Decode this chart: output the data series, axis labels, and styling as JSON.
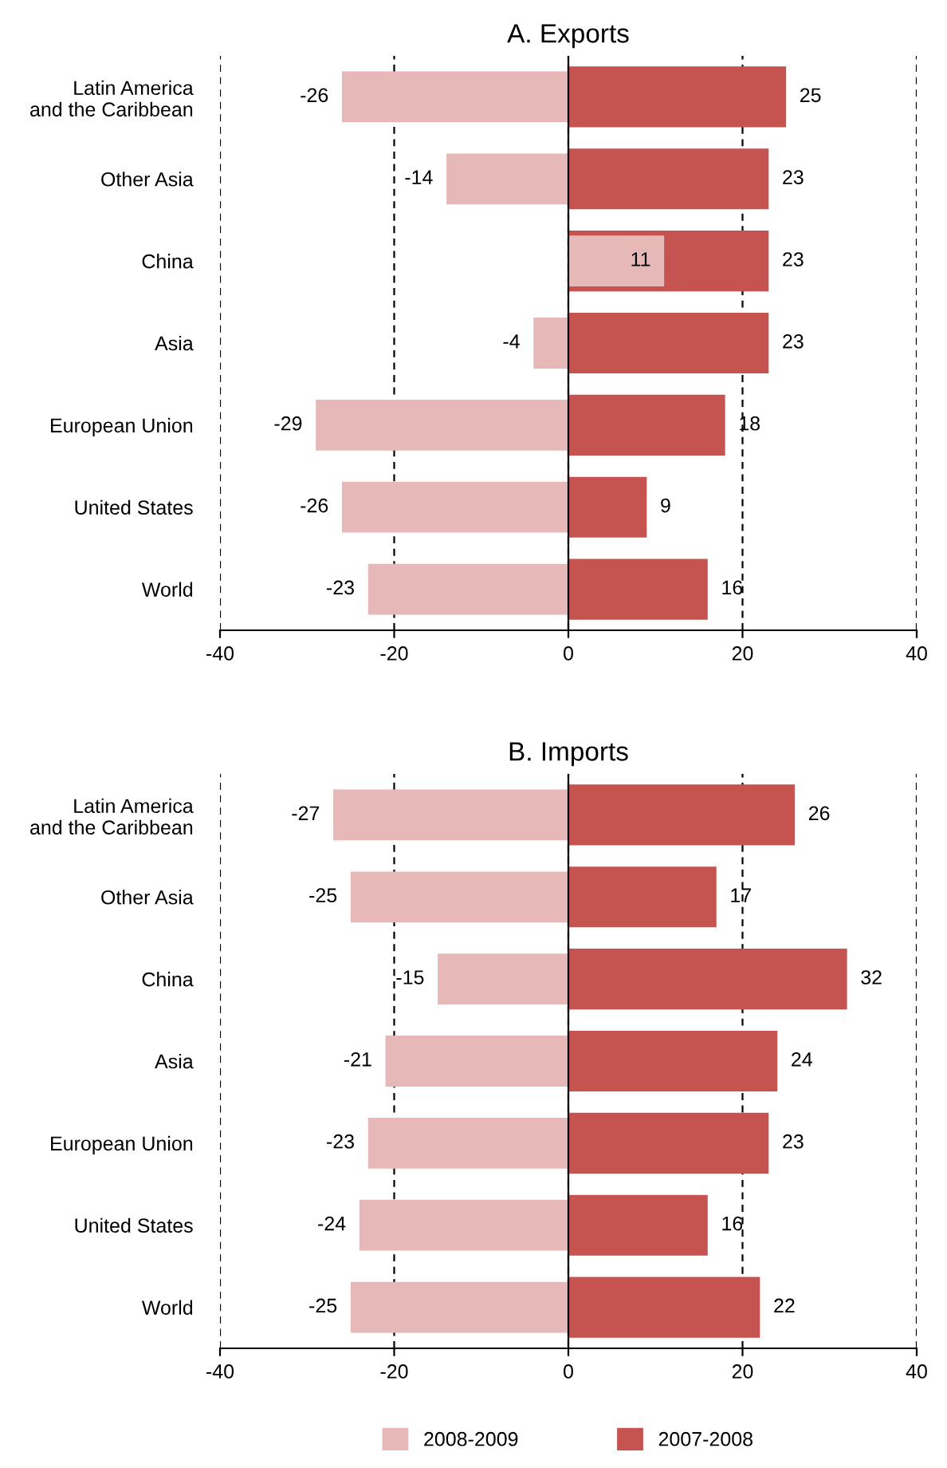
{
  "chart_data": [
    {
      "type": "bar",
      "title": "A. Exports",
      "orientation": "horizontal",
      "categories": [
        "Latin America\nand the Caribbean",
        "Other Asia",
        "China",
        "Asia",
        "European Union",
        "United States",
        "World"
      ],
      "series": [
        {
          "name": "2007-2008",
          "color": "#c5534f",
          "values": [
            25,
            23,
            23,
            23,
            18,
            9,
            16
          ]
        },
        {
          "name": "2008-2009",
          "color": "#e6b9b8",
          "values": [
            -26,
            -14,
            11,
            -4,
            -29,
            -26,
            -23
          ]
        }
      ],
      "xlim": [
        -40,
        40
      ],
      "xticks": [
        -40,
        -20,
        0,
        20,
        40
      ],
      "grid": "x",
      "data_labels": true,
      "ref_lines": [
        {
          "axis": "x",
          "value": 0
        }
      ],
      "legend": "bottom"
    },
    {
      "type": "bar",
      "title": "B. Imports",
      "orientation": "horizontal",
      "categories": [
        "Latin America\nand the Caribbean",
        "Other Asia",
        "China",
        "Asia",
        "European Union",
        "United States",
        "World"
      ],
      "series": [
        {
          "color": "#c5534f",
          "values": [
            26,
            17,
            32,
            24,
            23,
            16,
            22
          ]
        },
        {
          "color": "#e6b9b8",
          "values": [
            -27,
            -25,
            -15,
            -21,
            -23,
            -24,
            -25
          ]
        }
      ],
      "xlim": [
        -40,
        40
      ],
      "xticks": [
        -40,
        -20,
        0,
        20,
        40
      ],
      "grid": "x",
      "data_labels": true,
      "ref_lines": [
        {
          "axis": "x",
          "value": 0
        }
      ]
    }
  ]
}
